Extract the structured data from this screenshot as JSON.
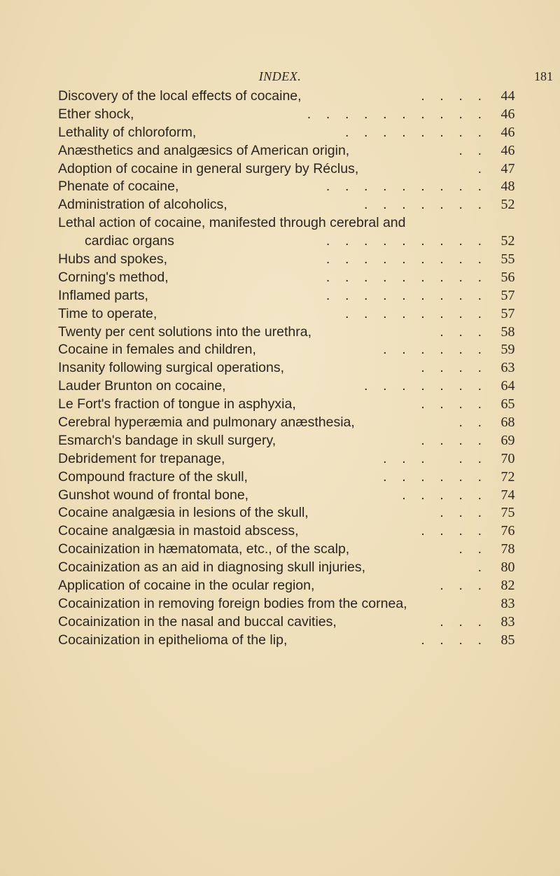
{
  "header": {
    "title": "INDEX.",
    "page_number": "181"
  },
  "entries": [
    {
      "title": "Discovery of the local effects of cocaine,",
      "leader": ".    .    .    .",
      "page": "44"
    },
    {
      "title": "Ether shock,",
      "leader": ".    .    .    .    .    .    .    .    .    .",
      "page": "46"
    },
    {
      "title": "Lethality of chloroform,",
      "leader": ".    .    .    .    .    .    .    .",
      "page": "46"
    },
    {
      "title": "Anæsthetics and analgæsics of American origin,",
      "leader": ".    .",
      "page": "46"
    },
    {
      "title": "Adoption of cocaine in general surgery by Réclus,",
      "leader": ".",
      "page": "47"
    },
    {
      "title": "Phenate of cocaine,",
      "leader": ".    .    .    .    .    .    .    .    .",
      "page": "48"
    },
    {
      "title": "Administration of alcoholics,",
      "leader": ".    .    .    .    .    .    .",
      "page": "52"
    },
    {
      "title": "Lethal action of cocaine, manifested through cerebral and",
      "leader": "",
      "page": ""
    },
    {
      "title": "cardiac organs",
      "leader": ".    .    .    .    .    .    .    .    .",
      "page": "52",
      "indent": true
    },
    {
      "title": "Hubs and spokes,",
      "leader": ".    .    .    .    .    .    .    .    .",
      "page": "55"
    },
    {
      "title": "Corning's method,",
      "leader": ".    .    .    .    .    .    .    .    .",
      "page": "56"
    },
    {
      "title": "Inflamed parts,",
      "leader": ".    .    .    .    .    .    .    .    .",
      "page": "57"
    },
    {
      "title": "Time to operate,",
      "leader": ".    .    .    .    .    .    .    .",
      "page": "57"
    },
    {
      "title": "Twenty per cent solutions into the urethra,",
      "leader": ".    .    .",
      "page": "58"
    },
    {
      "title": "Cocaine in females and children,",
      "leader": ".    .    .    .    .    .",
      "page": "59"
    },
    {
      "title": "Insanity following surgical operations,",
      "leader": ".    .    .    .",
      "page": "63"
    },
    {
      "title": "Lauder Brunton on cocaine,",
      "leader": ".    .    .    .    .    .    .",
      "page": "64"
    },
    {
      "title": "Le Fort's fraction of tongue in asphyxia,",
      "leader": ".    .    .    .",
      "page": "65"
    },
    {
      "title": "Cerebral hyperæmia and pulmonary anæsthesia,",
      "leader": ".    .",
      "page": "68"
    },
    {
      "title": "Esmarch's bandage in skull surgery,",
      "leader": ".    .    .    .",
      "page": "69"
    },
    {
      "title": "Debridement for trepanage,",
      "leader": ".    .    .         .    .",
      "page": "70"
    },
    {
      "title": "Compound fracture of the skull,",
      "leader": ".    .    .    .    .    .",
      "page": "72"
    },
    {
      "title": "Gunshot wound of frontal bone,",
      "leader": ".    .    .    .    .",
      "page": "74"
    },
    {
      "title": "Cocaine analgæsia in lesions of the skull,",
      "leader": ".    .    .",
      "page": "75"
    },
    {
      "title": "Cocaine analgæsia in mastoid abscess,",
      "leader": ".    .    .    .",
      "page": "76"
    },
    {
      "title": "Cocainization in hæmatomata, etc., of the scalp,",
      "leader": ".    .",
      "page": "78"
    },
    {
      "title": "Cocainization as an aid in diagnosing skull injuries,",
      "leader": ".",
      "page": "80"
    },
    {
      "title": "Application of cocaine in the ocular region,",
      "leader": ".    .    .",
      "page": "82"
    },
    {
      "title": "Cocainization in removing foreign bodies from the cornea,",
      "leader": "",
      "page": "83"
    },
    {
      "title": "Cocainization in the nasal and buccal cavities,",
      "leader": ".    .    .",
      "page": "83"
    },
    {
      "title": "Cocainization in epithelioma of the lip,",
      "leader": ".    .    .    .",
      "page": "85"
    }
  ]
}
